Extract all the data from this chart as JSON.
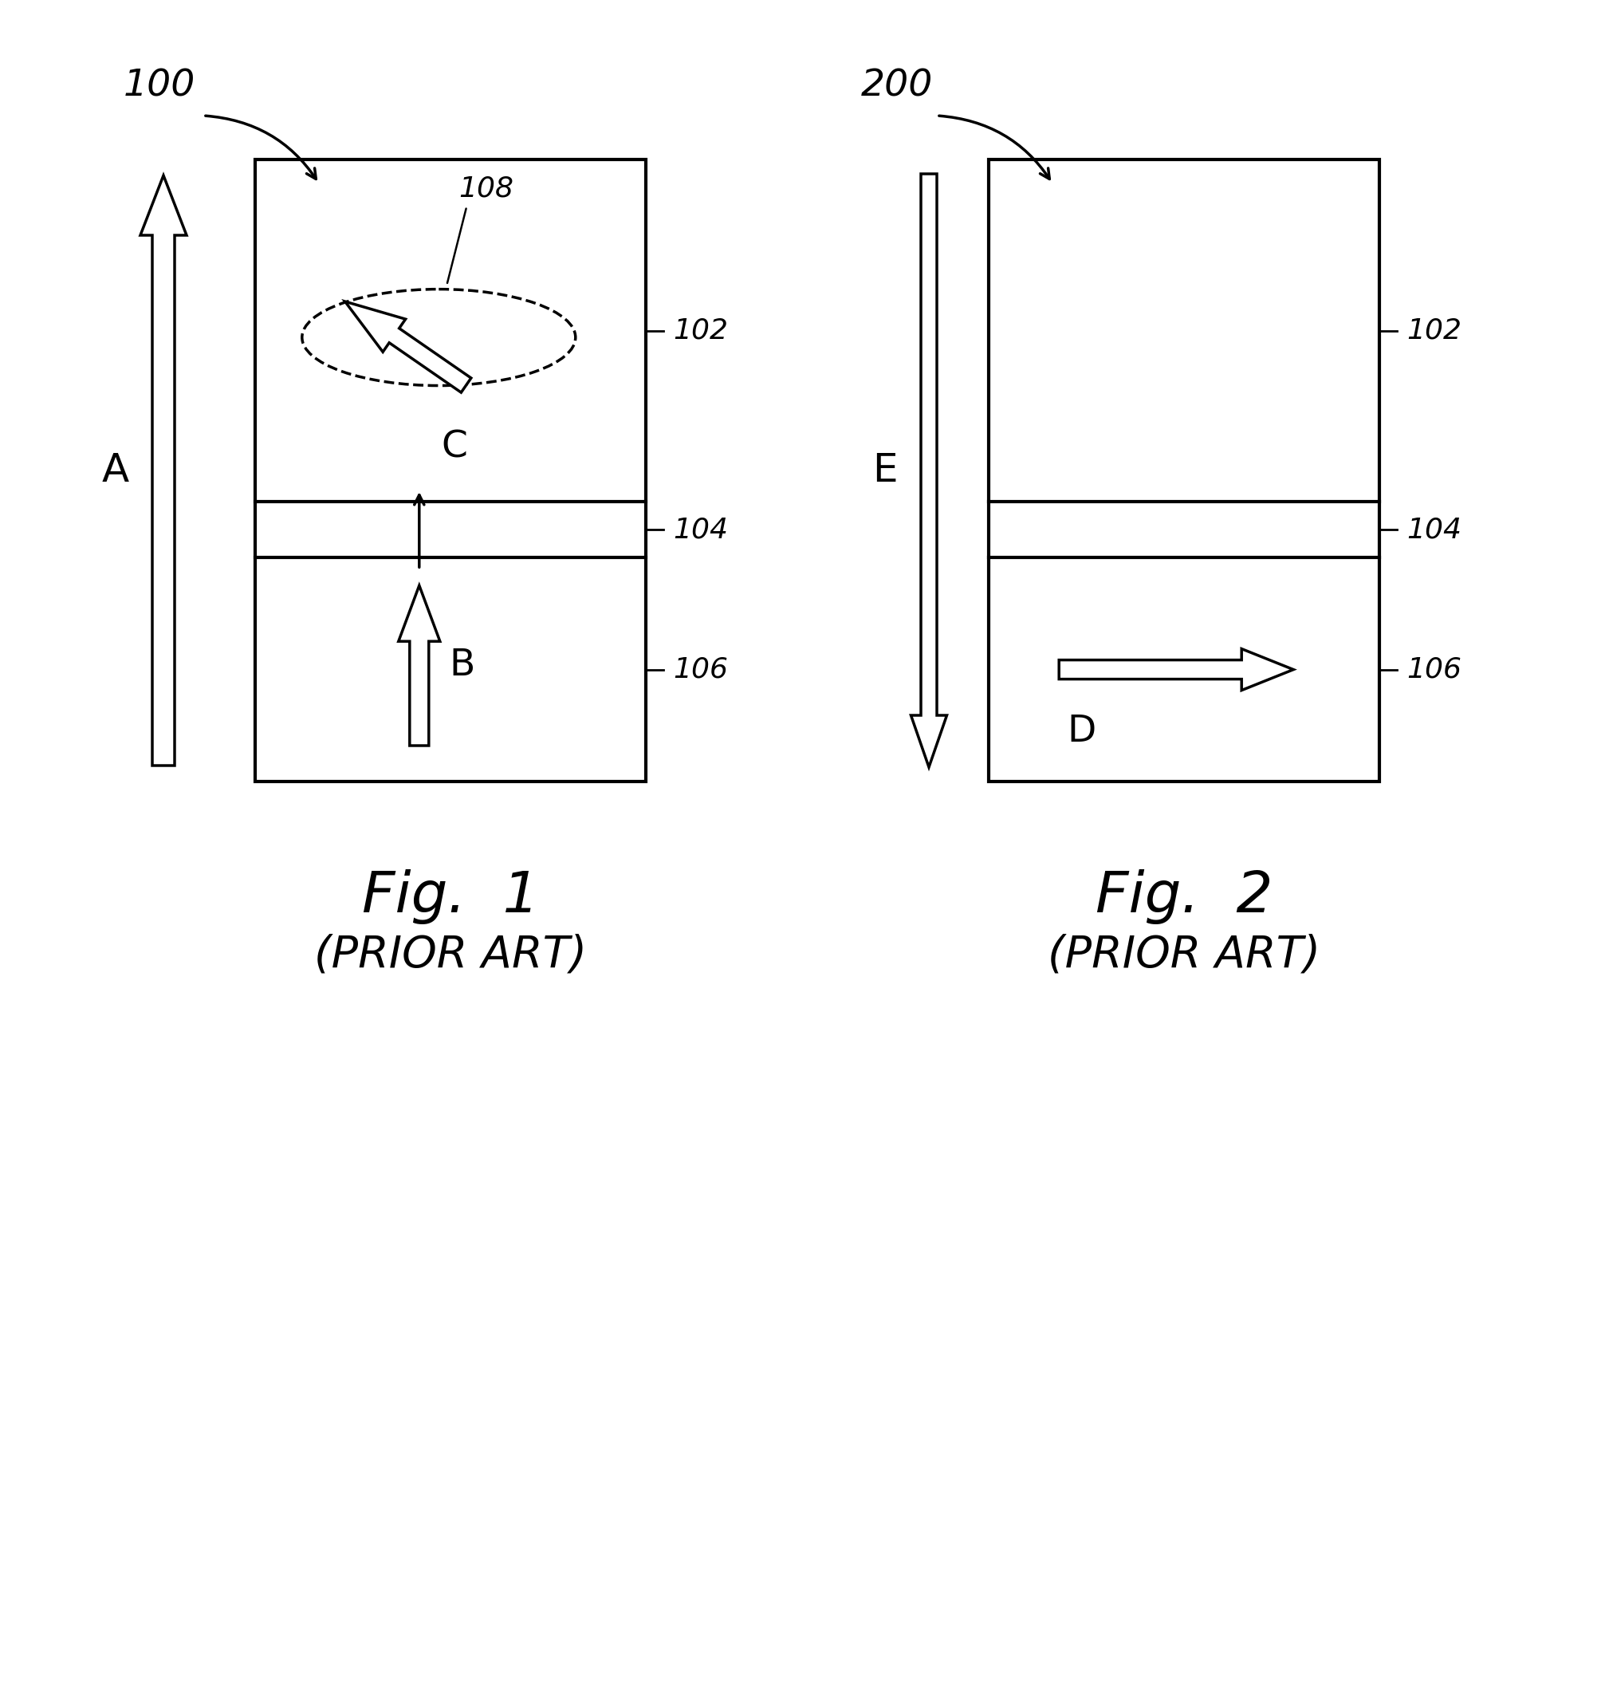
{
  "fig1_label": "100",
  "fig2_label": "200",
  "fig1_title": "Fig.  1",
  "fig1_subtitle": "(PRIOR ART)",
  "fig2_title": "Fig.  2",
  "fig2_subtitle": "(PRIOR ART)",
  "label_102": "102",
  "label_104": "104",
  "label_106": "106",
  "label_108": "108",
  "label_A": "A",
  "label_B": "B",
  "label_C": "C",
  "label_D": "D",
  "label_E": "E",
  "bg_color": "#ffffff"
}
